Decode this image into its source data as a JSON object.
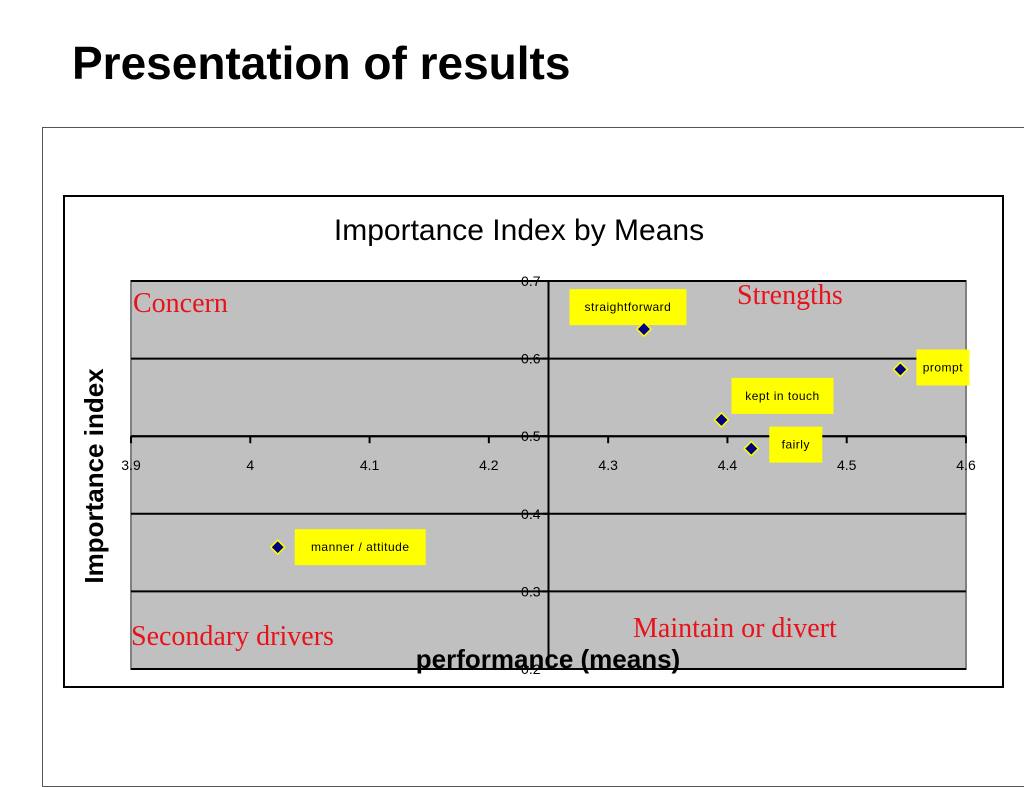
{
  "slide": {
    "title": "Presentation of results"
  },
  "chart_data": {
    "type": "scatter",
    "title": "Importance Index by Means",
    "xlabel": "performance (means)",
    "ylabel": "Importance index",
    "xlim": [
      3.9,
      4.6
    ],
    "ylim": [
      0.2,
      0.7
    ],
    "x_ticks": [
      "3.9",
      "4",
      "4.1",
      "4.2",
      "4.3",
      "4.4",
      "4.5",
      "4.6"
    ],
    "y_ticks": [
      "0.2",
      "0.3",
      "0.4",
      "0.5",
      "0.6",
      "0.7"
    ],
    "x_axis_crosses_y": 0.5,
    "y_axis_crosses_x": 4.25,
    "grid": true,
    "plot_background": "#c0c0c0",
    "label_background": "#ffff00",
    "marker_color": "#000080",
    "points": [
      {
        "label": "straightforward",
        "x": 4.33,
        "y": 0.638
      },
      {
        "label": "prompt",
        "x": 4.545,
        "y": 0.586
      },
      {
        "label": "kept in touch",
        "x": 4.395,
        "y": 0.521
      },
      {
        "label": "fairly",
        "x": 4.42,
        "y": 0.484
      },
      {
        "label": "manner / attitude",
        "x": 4.023,
        "y": 0.357
      }
    ],
    "quadrants": {
      "top_left": "Concern",
      "top_right": "Strengths",
      "bottom_left": "Secondary drivers",
      "bottom_right": "Maintain or divert"
    },
    "quadrant_color": "#e8121a"
  }
}
